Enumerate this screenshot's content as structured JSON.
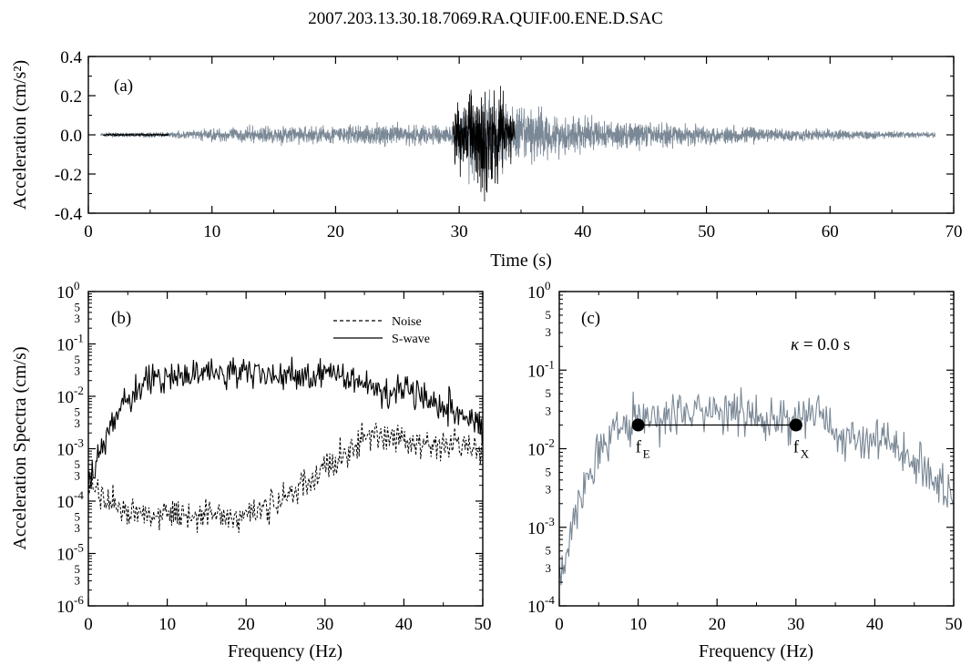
{
  "figure_title": "2007.203.13.30.18.7069.RA.QUIF.00.ENE.D.SAC",
  "chart_data": [
    {
      "id": "a",
      "type": "line",
      "panel_label": "(a)",
      "xlabel": "Time (s)",
      "ylabel": "Acceleration (cm/s²)",
      "xlim": [
        0,
        70
      ],
      "ylim": [
        -0.4,
        0.4
      ],
      "xticks": [
        0,
        10,
        20,
        30,
        40,
        50,
        60,
        70
      ],
      "yticks": [
        -0.4,
        -0.2,
        0.0,
        0.2,
        0.4
      ],
      "ytick_labels": [
        "-0.4",
        "-0.2",
        "0.0",
        "0.2",
        "0.4"
      ],
      "grid": false,
      "series": [
        {
          "role": "full-record",
          "color": "#7a8896",
          "x": [
            1,
            6.5,
            10,
            15,
            20,
            25,
            29.5,
            31,
            33,
            34.5,
            36,
            38,
            42,
            46,
            50,
            55,
            60,
            64,
            68.5
          ],
          "envelope": [
            0.008,
            0.012,
            0.03,
            0.04,
            0.045,
            0.05,
            0.05,
            0.2,
            0.2,
            0.12,
            0.13,
            0.1,
            0.07,
            0.055,
            0.045,
            0.035,
            0.025,
            0.018,
            0.012
          ]
        },
        {
          "role": "noise-window",
          "color": "#000000",
          "x": [
            1.2,
            6.5
          ],
          "envelope": [
            0.005,
            0.005
          ]
        },
        {
          "role": "s-wave-window",
          "color": "#000000",
          "x": [
            29.5,
            30.5,
            31.5,
            32.5,
            33.5,
            34.5
          ],
          "envelope": [
            0.1,
            0.2,
            0.22,
            0.28,
            0.18,
            0.12
          ],
          "peak_min": -0.34,
          "peak_max": 0.25
        }
      ]
    },
    {
      "id": "b",
      "type": "line",
      "panel_label": "(b)",
      "xlabel": "Frequency (Hz)",
      "ylabel": "Acceleration Spectra (cm/s)",
      "xlim": [
        0,
        50
      ],
      "ylim": [
        1e-06,
        1
      ],
      "yscale": "log",
      "xticks": [
        0,
        10,
        20,
        30,
        40,
        50
      ],
      "yticks": [
        1e-06,
        1e-05,
        0.0001,
        0.001,
        0.01,
        0.1,
        1
      ],
      "ytick_labels": [
        [
          "10",
          "-6"
        ],
        [
          "10",
          "-5"
        ],
        [
          "10",
          "-4"
        ],
        [
          "10",
          "-3"
        ],
        [
          "10",
          "-2"
        ],
        [
          "10",
          "-1"
        ],
        [
          "10",
          "0"
        ]
      ],
      "minor_tick_labels": [
        "3",
        "5"
      ],
      "grid": false,
      "legend": {
        "position": "top-right",
        "entries": [
          "Noise",
          "S-wave"
        ]
      },
      "series": [
        {
          "name": "Noise",
          "style": "dashed",
          "color": "#000000",
          "x": [
            0,
            1,
            2,
            4,
            6,
            8,
            10,
            12,
            14,
            16,
            18,
            20,
            22,
            24,
            26,
            28,
            30,
            32,
            34,
            36,
            38,
            40,
            42,
            44,
            46,
            48,
            50
          ],
          "y": [
            0.0003,
            0.00015,
            0.0001,
            7e-05,
            6e-05,
            6e-05,
            7e-05,
            5e-05,
            6e-05,
            6e-05,
            5e-05,
            5e-05,
            7e-05,
            0.0001,
            0.00015,
            0.00022,
            0.0004,
            0.0007,
            0.0012,
            0.0018,
            0.0015,
            0.0015,
            0.0013,
            0.001,
            0.0012,
            0.0011,
            0.0009
          ]
        },
        {
          "name": "S-wave",
          "style": "solid",
          "color": "#000000",
          "x": [
            0,
            1,
            2,
            3,
            4,
            5,
            6,
            8,
            10,
            12,
            14,
            16,
            18,
            20,
            22,
            24,
            26,
            28,
            30,
            32,
            34,
            36,
            38,
            40,
            42,
            44,
            46,
            48,
            50
          ],
          "y": [
            0.0002,
            0.0005,
            0.0015,
            0.003,
            0.006,
            0.01,
            0.012,
            0.018,
            0.025,
            0.025,
            0.028,
            0.03,
            0.028,
            0.028,
            0.027,
            0.025,
            0.025,
            0.022,
            0.025,
            0.028,
            0.022,
            0.015,
            0.012,
            0.015,
            0.012,
            0.008,
            0.006,
            0.004,
            0.002
          ]
        }
      ]
    },
    {
      "id": "c",
      "type": "line",
      "panel_label": "(c)",
      "xlabel": "Frequency (Hz)",
      "xlim": [
        0,
        50
      ],
      "ylim": [
        0.0001,
        1
      ],
      "yscale": "log",
      "xticks": [
        0,
        10,
        20,
        30,
        40,
        50
      ],
      "yticks": [
        0.0001,
        0.001,
        0.01,
        0.1,
        1
      ],
      "ytick_labels": [
        [
          "10",
          "-4"
        ],
        [
          "10",
          "-3"
        ],
        [
          "10",
          "-2"
        ],
        [
          "10",
          "-1"
        ],
        [
          "10",
          "0"
        ]
      ],
      "minor_tick_labels": [
        "3",
        "5"
      ],
      "grid": false,
      "annotation": {
        "symbol": "κ",
        "text": " = 0.0 s"
      },
      "markers": [
        {
          "x": 10,
          "y": 0.02,
          "label": "f",
          "sub": "E"
        },
        {
          "x": 30,
          "y": 0.02,
          "label": "f",
          "sub": "X"
        }
      ],
      "series": [
        {
          "color": "#7a8896",
          "style": "solid",
          "x": [
            0,
            1,
            2,
            3,
            4,
            5,
            6,
            8,
            10,
            12,
            14,
            16,
            18,
            20,
            22,
            24,
            26,
            28,
            30,
            32,
            34,
            36,
            38,
            40,
            42,
            44,
            46,
            48,
            50
          ],
          "y": [
            0.0002,
            0.0005,
            0.0015,
            0.003,
            0.006,
            0.01,
            0.012,
            0.018,
            0.025,
            0.025,
            0.028,
            0.03,
            0.028,
            0.028,
            0.027,
            0.025,
            0.025,
            0.022,
            0.025,
            0.028,
            0.022,
            0.015,
            0.012,
            0.015,
            0.012,
            0.008,
            0.006,
            0.004,
            0.002
          ]
        }
      ]
    }
  ]
}
